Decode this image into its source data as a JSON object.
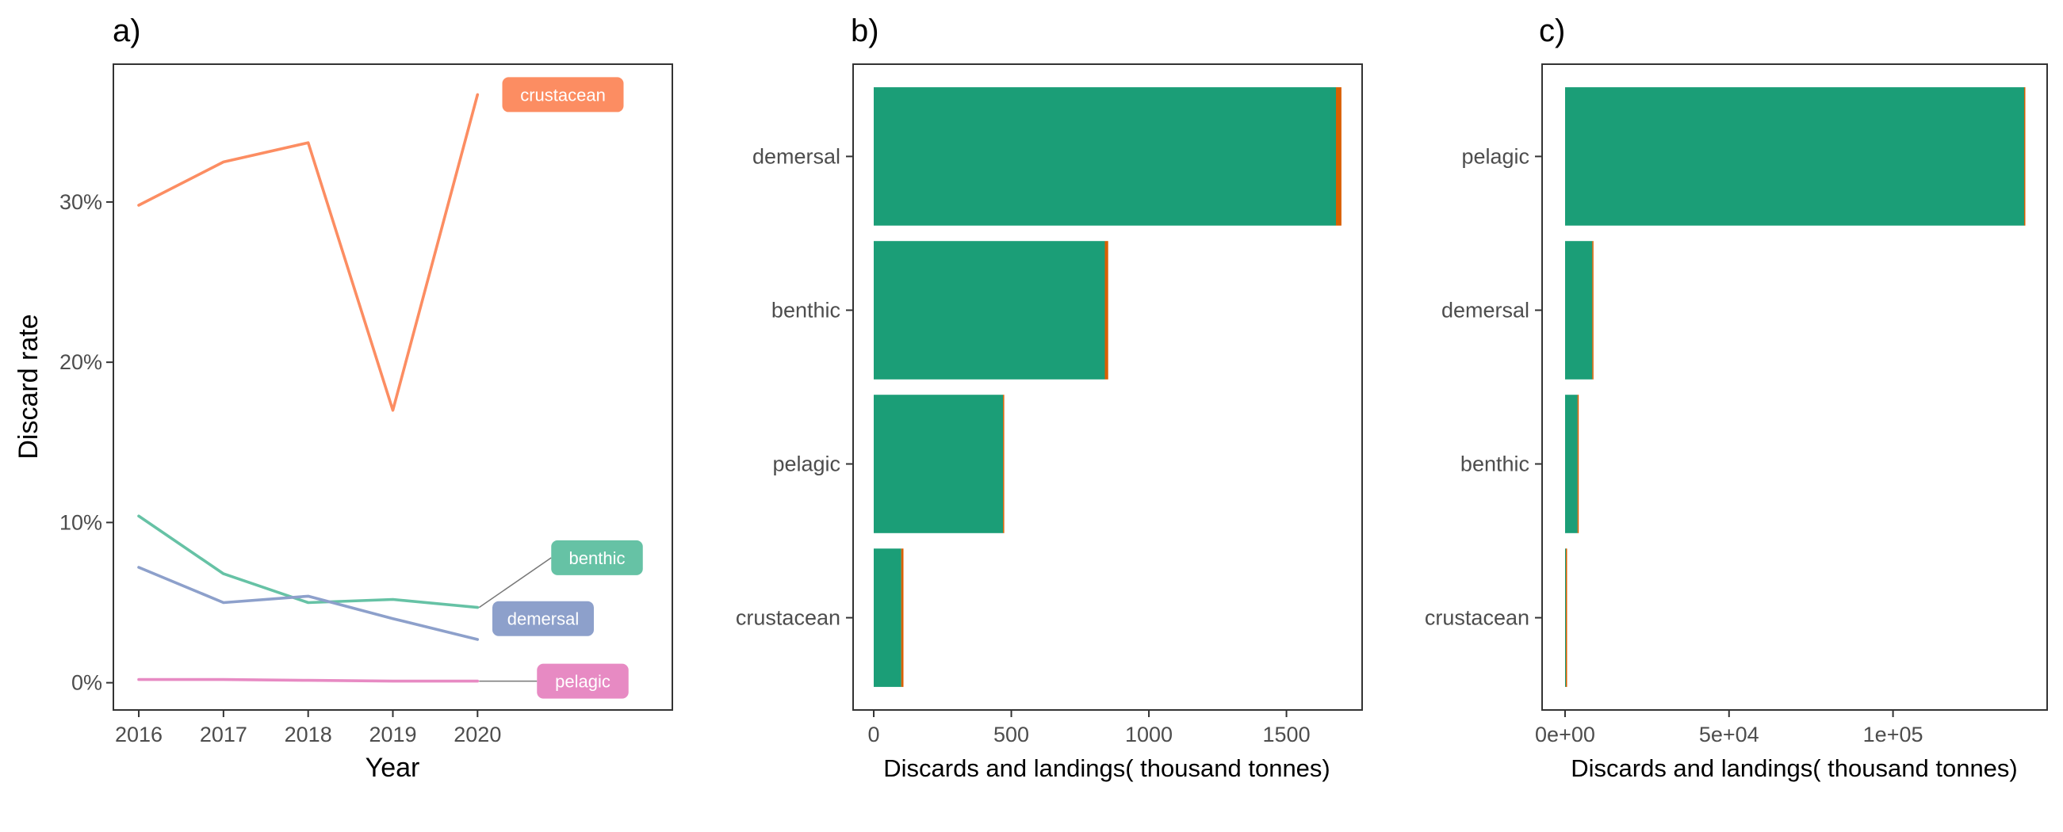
{
  "panels": {
    "a": {
      "tag": "a)"
    },
    "b": {
      "tag": "b)"
    },
    "c": {
      "tag": "c)"
    }
  },
  "colors": {
    "crustacean": "#fc8d62",
    "benthic": "#66c2a5",
    "demersal": "#8da0cb",
    "pelagic": "#e78ac3",
    "discards": "#d95f02",
    "landings": "#1b9e77"
  },
  "chart_data": [
    {
      "type": "line",
      "panel": "a)",
      "xlabel": "Year",
      "ylabel": "Discard rate",
      "x": [
        2016,
        2017,
        2018,
        2019,
        2020
      ],
      "xticks": [
        "2016",
        "2017",
        "2018",
        "2019",
        "2020"
      ],
      "xlim": [
        2015.7,
        2022.3
      ],
      "yticks": [
        0,
        10,
        20,
        30
      ],
      "ytick_labels": [
        "0%",
        "10%",
        "20%",
        "30%"
      ],
      "ylim": [
        -1.7,
        38.6
      ],
      "legend": "direct labels at right of lines",
      "grid": false,
      "series": [
        {
          "name": "crustacean",
          "values": [
            29.8,
            32.5,
            33.7,
            17.0,
            36.7
          ]
        },
        {
          "name": "benthic",
          "values": [
            10.4,
            6.8,
            5.0,
            5.2,
            4.7
          ]
        },
        {
          "name": "demersal",
          "values": [
            7.2,
            5.0,
            5.4,
            4.0,
            2.7
          ]
        },
        {
          "name": "pelagic",
          "values": [
            0.2,
            0.2,
            0.15,
            0.1,
            0.1
          ]
        }
      ]
    },
    {
      "type": "bar",
      "orientation": "horizontal",
      "stacked": true,
      "panel": "b)",
      "xlabel": "Discards and landings( thousand tonnes)",
      "ylabel": "",
      "categories": [
        "demersal",
        "benthic",
        "pelagic",
        "crustacean"
      ],
      "xlim": [
        -75,
        1775
      ],
      "xticks": [
        0,
        500,
        1000,
        1500
      ],
      "xtick_labels": [
        "0",
        "500",
        "1000",
        "1500"
      ],
      "grid": false,
      "series": [
        {
          "values": [
            1680,
            840,
            470,
            100
          ]
        },
        {
          "values": [
            20,
            12,
            3,
            8
          ]
        }
      ]
    },
    {
      "type": "bar",
      "orientation": "horizontal",
      "stacked": true,
      "panel": "c)",
      "xlabel": "Discards and landings( thousand tonnes)",
      "ylabel": "",
      "categories": [
        "pelagic",
        "demersal",
        "benthic",
        "crustacean"
      ],
      "xlim": [
        -7000,
        147000
      ],
      "xticks": [
        0,
        50000,
        100000
      ],
      "xtick_labels": [
        "0e+00",
        "5e+04",
        "1e+05"
      ],
      "grid": false,
      "series": [
        {
          "values": [
            140000,
            8300,
            3800,
            250
          ]
        },
        {
          "values": [
            100,
            250,
            120,
            150
          ]
        }
      ]
    }
  ]
}
